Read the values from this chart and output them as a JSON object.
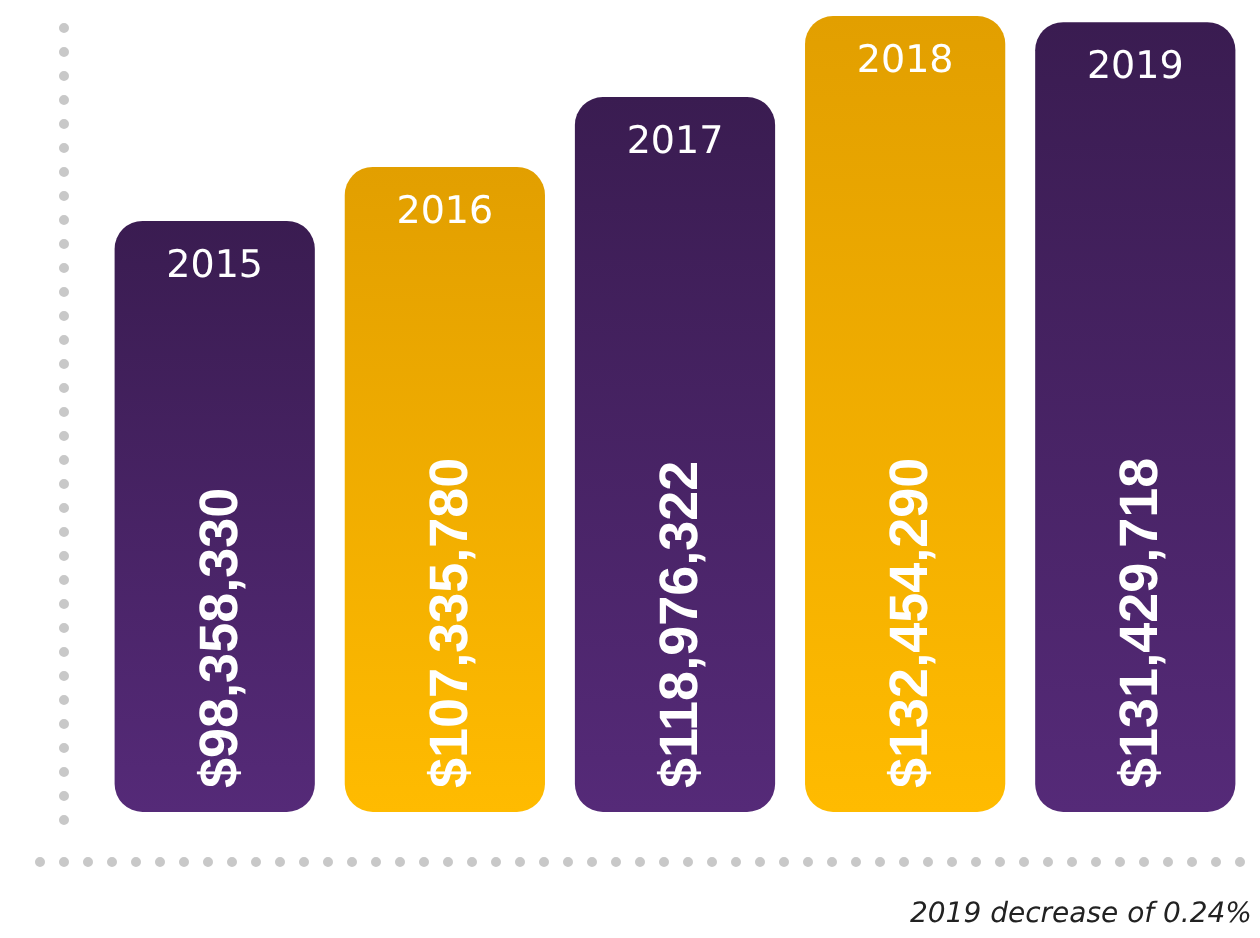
{
  "chart_data": {
    "type": "bar",
    "categories": [
      "2015",
      "2016",
      "2017",
      "2018",
      "2019"
    ],
    "values": [
      98358330,
      107335780,
      118976322,
      132454290,
      131429718
    ],
    "colors": [
      "#4a2468",
      "#f7ae00",
      "#4a2468",
      "#f7ae00",
      "#4a2468"
    ],
    "value_labels": [
      "$98,358,330",
      "$107,335,780",
      "$118,976,322",
      "$132,454,290",
      "$131,429,718"
    ],
    "annotations": [
      "2019 decrease of 0.24%"
    ]
  }
}
